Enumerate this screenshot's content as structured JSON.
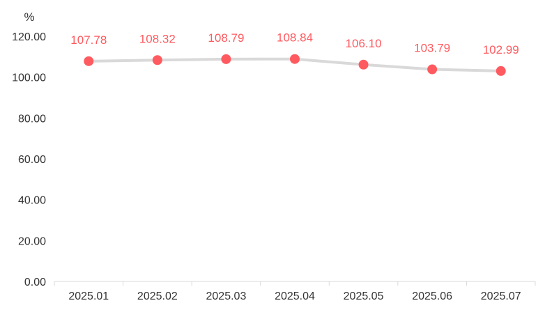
{
  "chart_data": {
    "type": "line",
    "unit_label": "%",
    "title": "",
    "xlabel": "",
    "ylabel": "",
    "categories": [
      "2025.01",
      "2025.02",
      "2025.03",
      "2025.04",
      "2025.05",
      "2025.06",
      "2025.07"
    ],
    "series": [
      {
        "values": [
          107.78,
          108.32,
          108.79,
          108.84,
          106.1,
          103.79,
          102.99
        ]
      }
    ],
    "data_labels": [
      "107.78",
      "108.32",
      "108.79",
      "108.84",
      "106.10",
      "103.79",
      "102.99"
    ],
    "ylim": [
      0,
      120
    ],
    "yticks": [
      0,
      20,
      40,
      60,
      80,
      100,
      120
    ],
    "ytick_labels": [
      "0.00",
      "20.00",
      "40.00",
      "60.00",
      "80.00",
      "100.00",
      "120.00"
    ],
    "grid": false,
    "legend": "none",
    "colors": {
      "line": "#d9d9d9",
      "marker": "#ff5a5f",
      "data_label": "#ff5a5f",
      "axis": "#d9d9d9",
      "text": "#333333"
    }
  }
}
